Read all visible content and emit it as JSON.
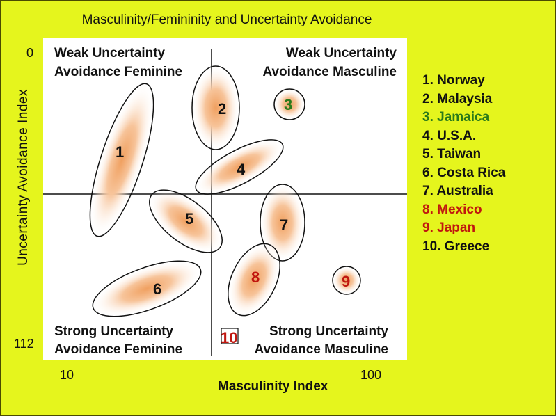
{
  "title": "Masculinity/Femininity and Uncertainty Avoidance",
  "y_axis_label": "Uncertainty Avoidance Index",
  "x_axis_label": "Masculinity Index",
  "y_ticks": {
    "top": "0",
    "bottom": "112"
  },
  "x_ticks": {
    "left": "10",
    "right": "100"
  },
  "quadrants": {
    "top_left": [
      "Weak Uncertainty",
      "Avoidance Feminine"
    ],
    "top_right": [
      "Weak Uncertainty",
      "Avoidance Masculine"
    ],
    "bottom_left": [
      "Strong Uncertainty",
      "Avoidance Feminine"
    ],
    "bottom_right": [
      "Strong Uncertainty",
      "Avoidance Masculine"
    ]
  },
  "colors": {
    "background": "#e5f51d",
    "default_text": "#111111",
    "green": "#2a7a1a",
    "red": "#c0160f",
    "blob": "#f4a259"
  },
  "countries": [
    {
      "num": "1",
      "name": "Norway",
      "color": "#111111"
    },
    {
      "num": "2",
      "name": "Malaysia",
      "color": "#111111"
    },
    {
      "num": "3",
      "name": "Jamaica",
      "color": "#2a7a1a"
    },
    {
      "num": "4",
      "name": "U.S.A.",
      "color": "#111111"
    },
    {
      "num": "5",
      "name": "Taiwan",
      "color": "#111111"
    },
    {
      "num": "6",
      "name": "Costa Rica",
      "color": "#111111"
    },
    {
      "num": "7",
      "name": "Australia",
      "color": "#111111"
    },
    {
      "num": "8",
      "name": "Mexico",
      "color": "#c0160f"
    },
    {
      "num": "9",
      "name": "Japan",
      "color": "#c0160f"
    },
    {
      "num": "10",
      "name": "Greece",
      "color": "#111111"
    }
  ]
}
